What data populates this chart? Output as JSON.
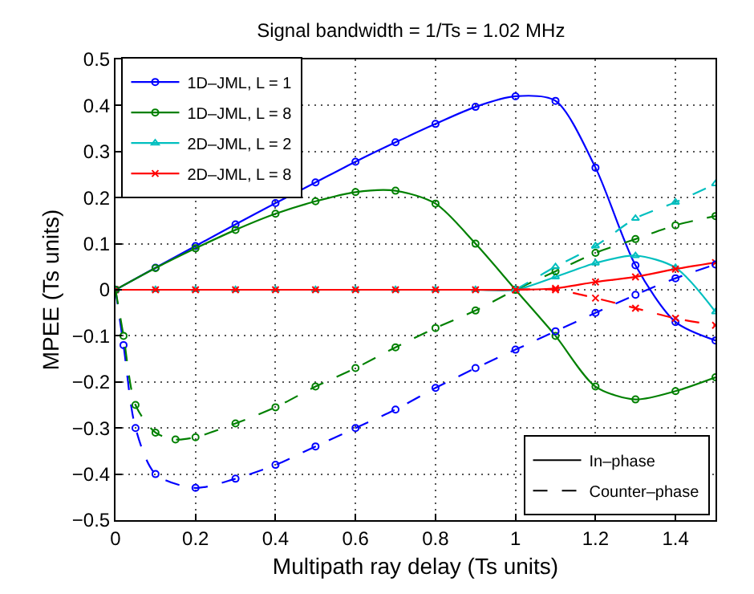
{
  "chart_data": {
    "type": "line",
    "title": "Signal bandwidth = 1/Ts = 1.02 MHz",
    "xlabel": "Multipath ray delay (Ts units)",
    "ylabel": "MPEE (Ts units)",
    "xlim": [
      0,
      1.5
    ],
    "xticks": [
      0,
      0.2,
      0.4,
      0.6,
      0.8,
      1,
      1.2,
      1.4
    ],
    "ylim": [
      -0.5,
      0.5
    ],
    "yticks": [
      -0.5,
      -0.4,
      -0.3,
      -0.2,
      -0.1,
      0,
      0.1,
      0.2,
      0.3,
      0.4,
      0.5
    ],
    "grid": true,
    "legend": "top left",
    "series": [
      {
        "name": "1D–JML, L = 1",
        "color": "#0000ff",
        "marker": "circle",
        "line_style": "solid",
        "x": [
          0,
          0.1,
          0.2,
          0.3,
          0.4,
          0.5,
          0.6,
          0.7,
          0.8,
          0.9,
          1.0,
          1.1,
          1.2,
          1.3,
          1.4,
          1.5
        ],
        "values": [
          0,
          0.048,
          0.095,
          0.142,
          0.188,
          0.233,
          0.278,
          0.32,
          0.36,
          0.397,
          0.42,
          0.41,
          0.265,
          0.053,
          -0.07,
          -0.11
        ]
      },
      {
        "name": "1D–JML, L = 8",
        "color": "#008000",
        "marker": "circle",
        "line_style": "solid",
        "x": [
          0,
          0.1,
          0.2,
          0.3,
          0.4,
          0.5,
          0.6,
          0.7,
          0.8,
          0.9,
          1.0,
          1.1,
          1.2,
          1.3,
          1.4,
          1.5
        ],
        "values": [
          0,
          0.047,
          0.09,
          0.13,
          0.165,
          0.192,
          0.212,
          0.215,
          0.187,
          0.1,
          0,
          -0.1,
          -0.21,
          -0.238,
          -0.22,
          -0.19
        ]
      },
      {
        "name": "2D–JML, L = 2",
        "color": "#00bfbf",
        "marker": "triangle",
        "line_style": "solid",
        "x": [
          0,
          0.1,
          0.2,
          0.3,
          0.4,
          0.5,
          0.6,
          0.7,
          0.8,
          0.9,
          1.0,
          1.1,
          1.2,
          1.3,
          1.4,
          1.5
        ],
        "values": [
          0,
          0,
          0,
          0,
          0,
          0,
          0,
          0,
          0,
          0,
          0,
          0.028,
          0.058,
          0.074,
          0.048,
          -0.048
        ]
      },
      {
        "name": "2D–JML, L = 8",
        "color": "#ff0000",
        "marker": "cross",
        "line_style": "solid",
        "x": [
          0,
          0.1,
          0.2,
          0.3,
          0.4,
          0.5,
          0.6,
          0.7,
          0.8,
          0.9,
          1.0,
          1.1,
          1.2,
          1.3,
          1.4,
          1.5
        ],
        "values": [
          0,
          0,
          0,
          0,
          0,
          0,
          0,
          0,
          0,
          0,
          0,
          0.003,
          0.017,
          0.028,
          0.045,
          0.059
        ]
      },
      {
        "color": "#0000ff",
        "marker": "circle",
        "line_style": "dashed",
        "x": [
          0,
          0.02,
          0.05,
          0.1,
          0.2,
          0.3,
          0.4,
          0.5,
          0.6,
          0.7,
          0.8,
          0.9,
          1.0,
          1.1,
          1.2,
          1.3,
          1.4,
          1.5
        ],
        "values": [
          0,
          -0.12,
          -0.3,
          -0.4,
          -0.43,
          -0.41,
          -0.38,
          -0.34,
          -0.3,
          -0.26,
          -0.213,
          -0.17,
          -0.13,
          -0.09,
          -0.05,
          -0.011,
          0.025,
          0.055
        ]
      },
      {
        "color": "#008000",
        "marker": "circle",
        "line_style": "dashed",
        "x": [
          0,
          0.02,
          0.05,
          0.1,
          0.15,
          0.2,
          0.3,
          0.4,
          0.5,
          0.6,
          0.7,
          0.8,
          0.9,
          1.0,
          1.1,
          1.2,
          1.3,
          1.4,
          1.5
        ],
        "values": [
          0,
          -0.1,
          -0.25,
          -0.31,
          -0.325,
          -0.32,
          -0.29,
          -0.255,
          -0.21,
          -0.17,
          -0.125,
          -0.083,
          -0.045,
          0,
          0.04,
          0.08,
          0.11,
          0.14,
          0.16
        ]
      },
      {
        "color": "#00bfbf",
        "marker": "triangle",
        "line_style": "dashed",
        "x": [
          1.0,
          1.1,
          1.2,
          1.3,
          1.4,
          1.5
        ],
        "values": [
          0,
          0.05,
          0.095,
          0.155,
          0.19,
          0.23
        ]
      },
      {
        "color": "#ff0000",
        "marker": "cross",
        "line_style": "dashed",
        "x": [
          1.0,
          1.1,
          1.2,
          1.3,
          1.4,
          1.5
        ],
        "values": [
          0,
          0,
          -0.018,
          -0.04,
          -0.062,
          -0.077
        ]
      },
      {
        "name": "In–phase",
        "color": "#000000",
        "marker": "none",
        "line_style": "solid",
        "values": [
          null
        ]
      },
      {
        "name": "Counter–phase",
        "color": "#000000",
        "marker": "none",
        "line_style": "dashed",
        "values": [
          null
        ]
      }
    ]
  }
}
